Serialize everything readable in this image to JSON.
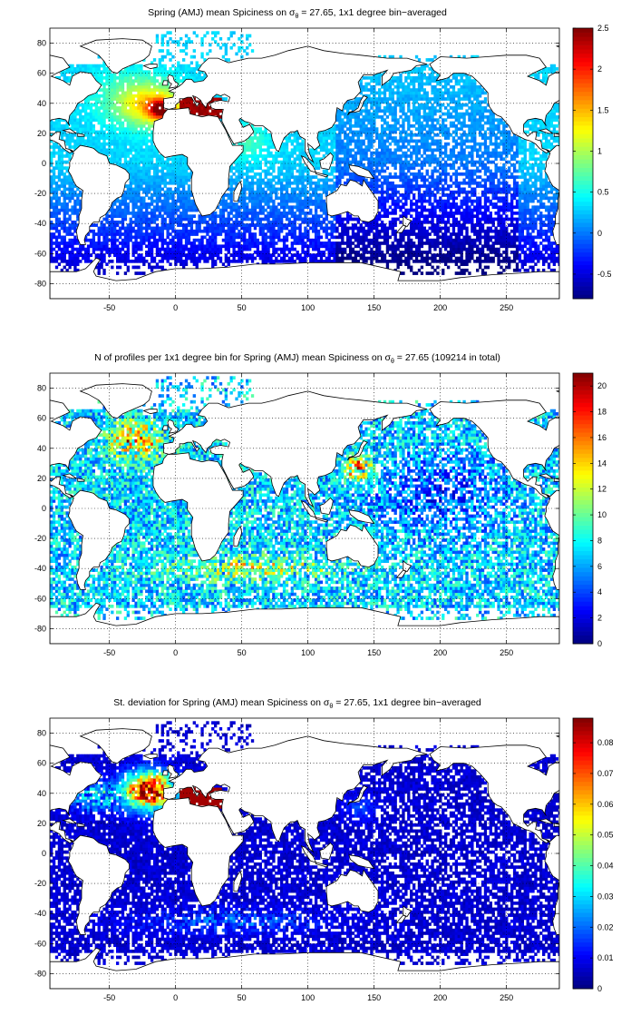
{
  "chart_data": [
    {
      "type": "heatmap",
      "title": "Spring (AMJ) mean Spiciness on σθ = 27.65, 1x1 degree bin−averaged",
      "title_parts": [
        "Spring (AMJ) mean Spiciness on ",
        "σ",
        "θ",
        " = 27.65, 1x1 degree bin−averaged"
      ],
      "xlabel": "",
      "ylabel": "",
      "xlim": [
        -95,
        290
      ],
      "ylim": [
        -90,
        90
      ],
      "xticks": [
        -50,
        0,
        50,
        100,
        150,
        200,
        250
      ],
      "yticks": [
        -80,
        -60,
        -40,
        -20,
        0,
        20,
        40,
        60,
        80
      ],
      "grid": true,
      "colormap": "jet",
      "colorbar": {
        "min": -0.8,
        "max": 2.5,
        "ticks": [
          -0.5,
          0,
          0.5,
          1,
          1.5,
          2,
          2.5
        ],
        "tick_labels": [
          "-0.5",
          "0",
          "0.5",
          "1",
          "1.5",
          "2",
          "2.5"
        ]
      },
      "field": "spiciness"
    },
    {
      "type": "heatmap",
      "title": "N of profiles per 1x1 degree bin for Spring (AMJ) mean Spiciness on σθ = 27.65 (109214 in total)",
      "title_parts": [
        "N of profiles per 1x1 degree bin for Spring (AMJ) mean Spiciness on ",
        "σ",
        "θ",
        " = 27.65 (109214 in total)"
      ],
      "xlabel": "",
      "ylabel": "",
      "xlim": [
        -95,
        290
      ],
      "ylim": [
        -90,
        90
      ],
      "xticks": [
        -50,
        0,
        50,
        100,
        150,
        200,
        250
      ],
      "yticks": [
        -80,
        -60,
        -40,
        -20,
        0,
        20,
        40,
        60,
        80
      ],
      "grid": true,
      "colormap": "jet",
      "colorbar": {
        "min": 0,
        "max": 21,
        "ticks": [
          0,
          2,
          4,
          6,
          8,
          10,
          12,
          14,
          16,
          18,
          20
        ],
        "tick_labels": [
          "0",
          "2",
          "4",
          "6",
          "8",
          "10",
          "12",
          "14",
          "16",
          "18",
          "20"
        ]
      },
      "field": "count"
    },
    {
      "type": "heatmap",
      "title": "St. deviation for Spring (AMJ) mean Spiciness on σθ = 27.65, 1x1 degree bin−averaged",
      "title_parts": [
        "St. deviation for Spring (AMJ) mean Spiciness on ",
        "σ",
        "θ",
        " = 27.65, 1x1 degree bin−averaged"
      ],
      "xlabel": "",
      "ylabel": "",
      "xlim": [
        -95,
        290
      ],
      "ylim": [
        -90,
        90
      ],
      "xticks": [
        -50,
        0,
        50,
        100,
        150,
        200,
        250
      ],
      "yticks": [
        -80,
        -60,
        -40,
        -20,
        0,
        20,
        40,
        60,
        80
      ],
      "grid": true,
      "colormap": "jet",
      "colorbar": {
        "min": 0,
        "max": 0.088,
        "ticks": [
          0,
          0.01,
          0.02,
          0.03,
          0.04,
          0.05,
          0.06,
          0.07,
          0.08
        ],
        "tick_labels": [
          "0",
          "0.01",
          "0.02",
          "0.03",
          "0.04",
          "0.05",
          "0.06",
          "0.07",
          "0.08"
        ]
      },
      "field": "std"
    }
  ]
}
